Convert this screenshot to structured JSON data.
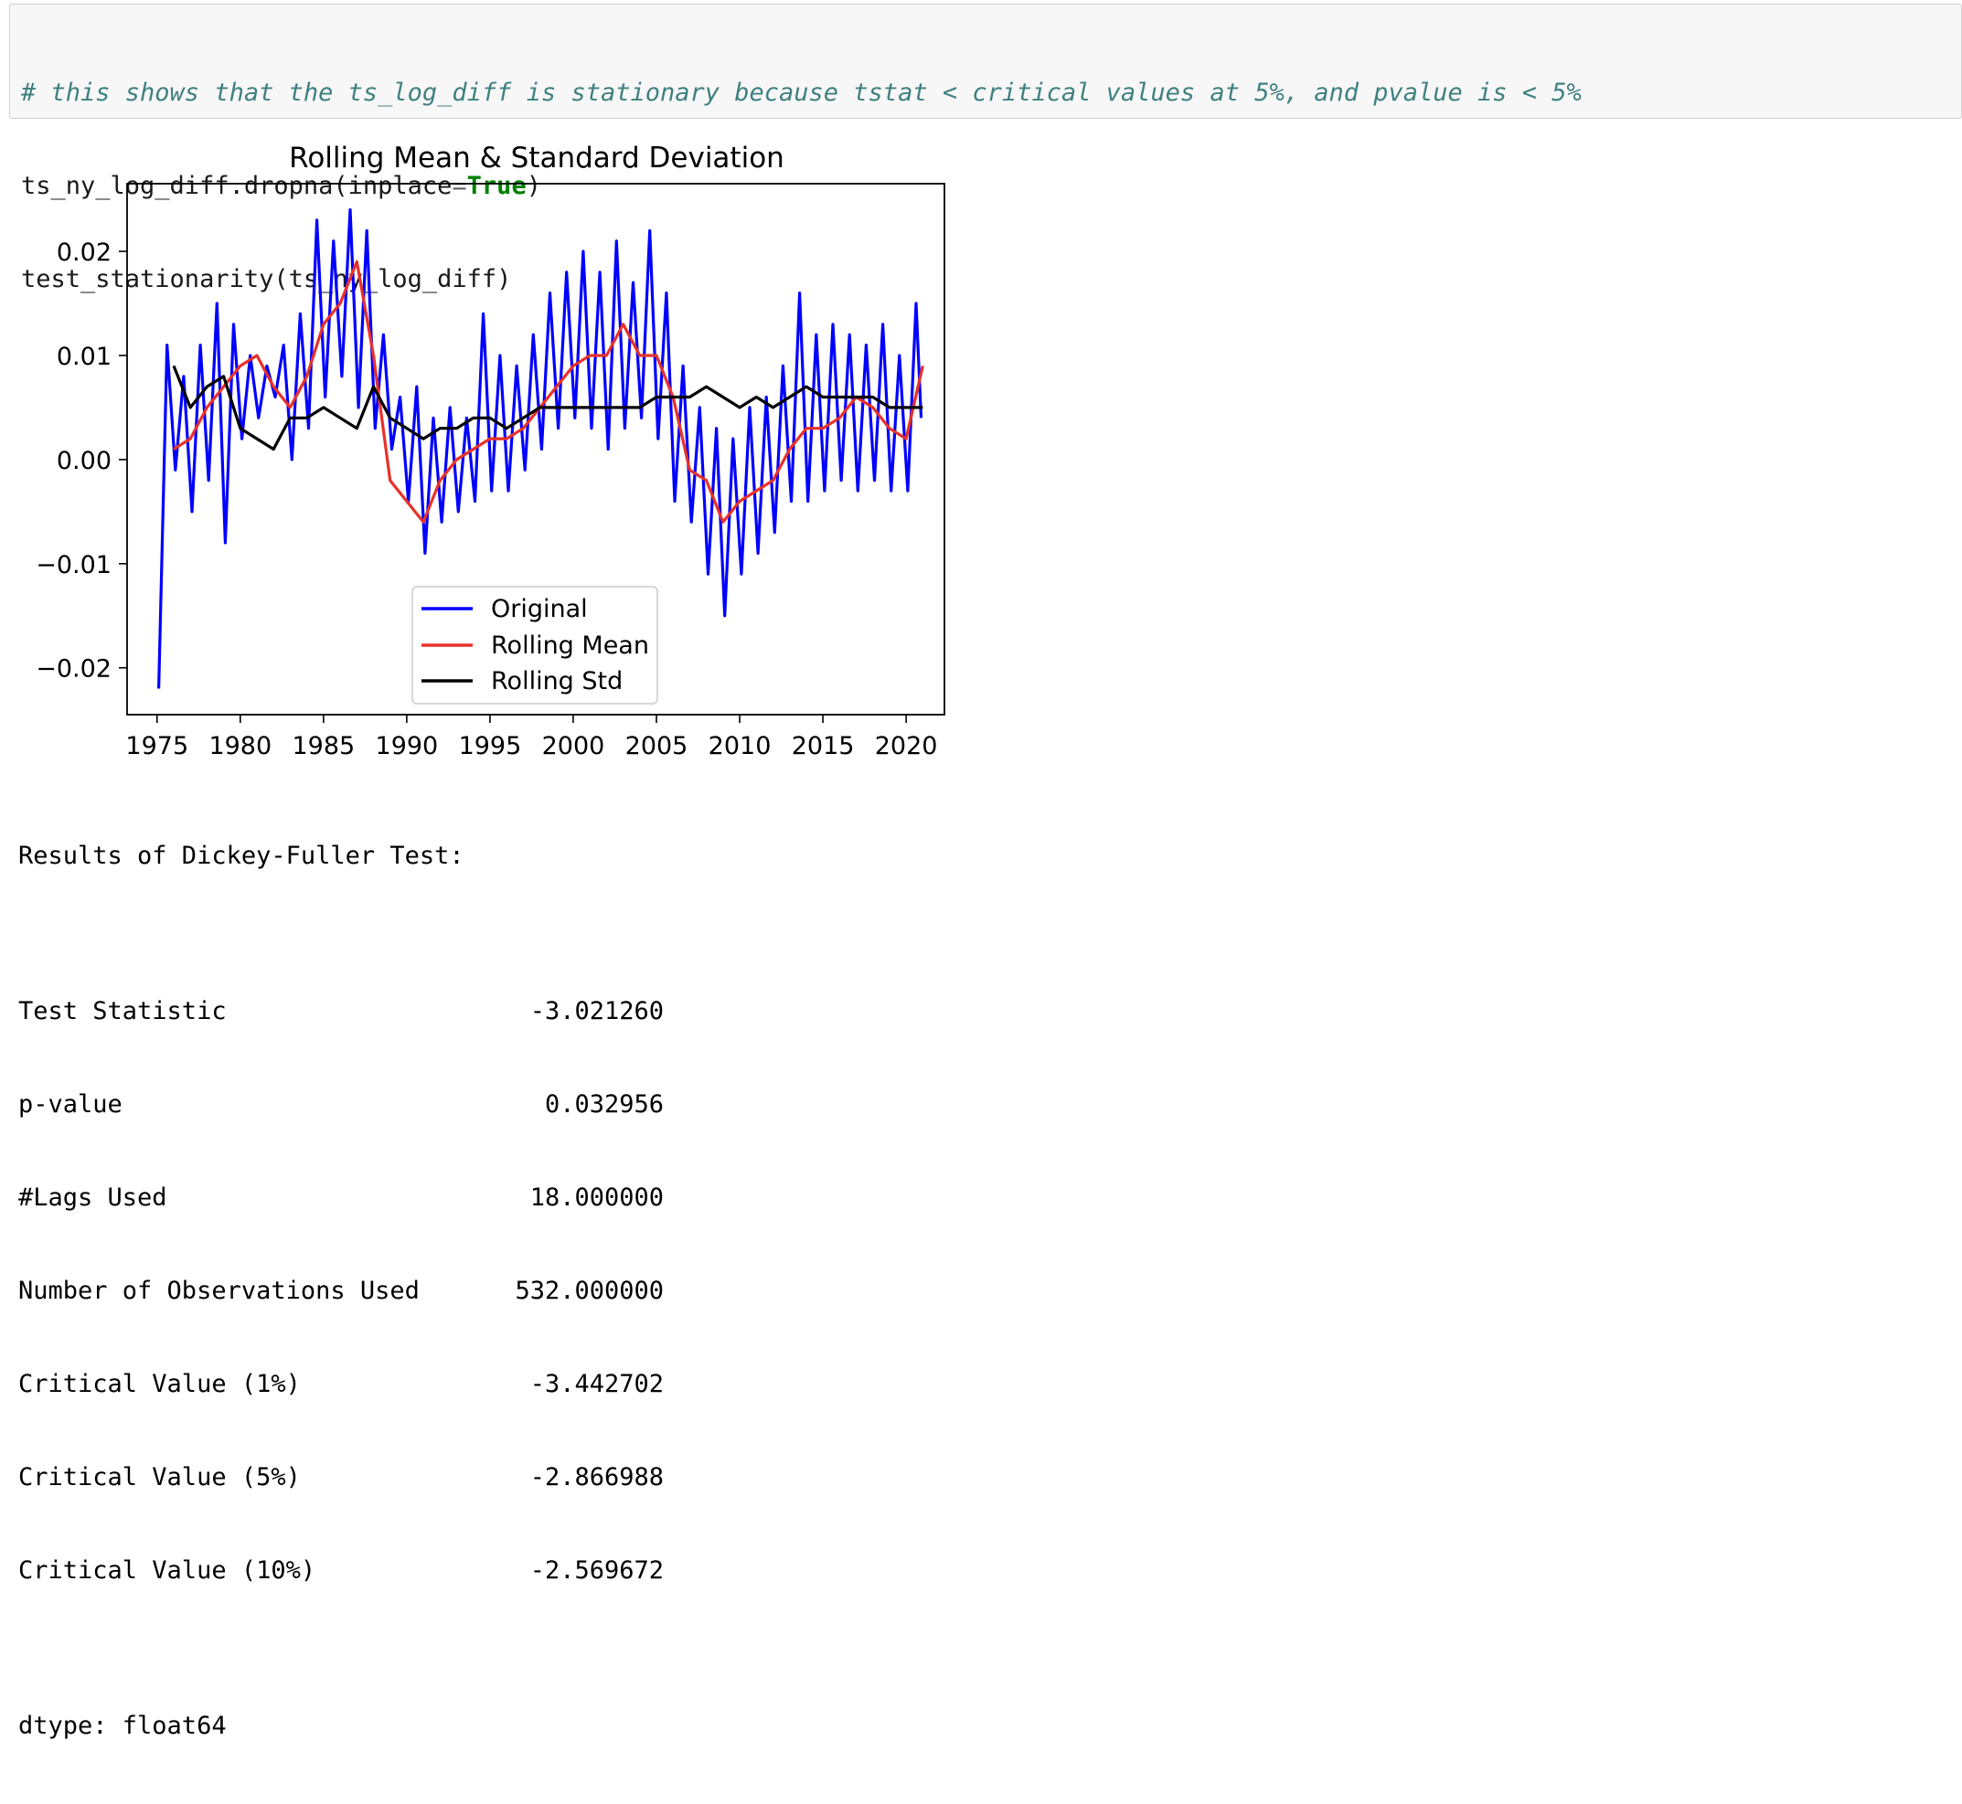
{
  "code_cell": {
    "comment": "# this shows that the ts_log_diff is stationary because tstat < critical values at 5%, and pvalue is < 5%",
    "line2_prefix": "ts_ny_log_diff.dropna(inplace",
    "line2_eq": "=",
    "line2_kw": "True",
    "line2_suffix": ")",
    "line3": "test_stationarity(ts_ny_log_diff)"
  },
  "chart_data": {
    "type": "line",
    "title": "Rolling Mean & Standard Deviation",
    "xlabel": "",
    "ylabel": "",
    "xlim": [
      1973.2,
      2022.3
    ],
    "ylim": [
      -0.0245,
      0.0265
    ],
    "xticks": [
      1975,
      1980,
      1985,
      1990,
      1995,
      2000,
      2005,
      2010,
      2015,
      2020
    ],
    "yticks": [
      -0.02,
      -0.01,
      0.0,
      0.01,
      0.02
    ],
    "xtick_labels": [
      "1975",
      "1980",
      "1985",
      "1990",
      "1995",
      "2000",
      "2005",
      "2010",
      "2015",
      "2020"
    ],
    "ytick_labels": [
      "−0.02",
      "−0.01",
      "0.00",
      "0.01",
      "0.02"
    ],
    "legend_position": "lower-center",
    "grid": false,
    "series": [
      {
        "name": "Original",
        "color": "#0000ff",
        "x": [
          1975.1,
          1975.6,
          1976.1,
          1976.6,
          1977.1,
          1977.6,
          1978.1,
          1978.6,
          1979.1,
          1979.6,
          1980.1,
          1980.6,
          1981.1,
          1981.6,
          1982.1,
          1982.6,
          1983.1,
          1983.6,
          1984.1,
          1984.6,
          1985.1,
          1985.6,
          1986.1,
          1986.6,
          1987.1,
          1987.6,
          1988.1,
          1988.6,
          1989.1,
          1989.6,
          1990.1,
          1990.6,
          1991.1,
          1991.6,
          1992.1,
          1992.6,
          1993.1,
          1993.6,
          1994.1,
          1994.6,
          1995.1,
          1995.6,
          1996.1,
          1996.6,
          1997.1,
          1997.6,
          1998.1,
          1998.6,
          1999.1,
          1999.6,
          2000.1,
          2000.6,
          2001.1,
          2001.6,
          2002.1,
          2002.6,
          2003.1,
          2003.6,
          2004.1,
          2004.6,
          2005.1,
          2005.6,
          2006.1,
          2006.6,
          2007.1,
          2007.6,
          2008.1,
          2008.6,
          2009.1,
          2009.6,
          2010.1,
          2010.6,
          2011.1,
          2011.6,
          2012.1,
          2012.6,
          2013.1,
          2013.6,
          2014.1,
          2014.6,
          2015.1,
          2015.6,
          2016.1,
          2016.6,
          2017.1,
          2017.6,
          2018.1,
          2018.6,
          2019.1,
          2019.6,
          2020.1,
          2020.6,
          2020.9
        ],
        "values": [
          -0.022,
          0.011,
          -0.001,
          0.008,
          -0.005,
          0.011,
          -0.002,
          0.015,
          -0.008,
          0.013,
          0.002,
          0.01,
          0.004,
          0.009,
          0.006,
          0.011,
          0.0,
          0.014,
          0.003,
          0.023,
          0.006,
          0.021,
          0.008,
          0.024,
          0.005,
          0.022,
          0.003,
          0.012,
          0.001,
          0.006,
          -0.004,
          0.007,
          -0.009,
          0.004,
          -0.006,
          0.005,
          -0.005,
          0.004,
          -0.004,
          0.014,
          -0.003,
          0.01,
          -0.003,
          0.009,
          -0.001,
          0.012,
          0.001,
          0.016,
          0.003,
          0.018,
          0.004,
          0.02,
          0.003,
          0.018,
          0.001,
          0.021,
          0.003,
          0.017,
          0.004,
          0.022,
          0.002,
          0.016,
          -0.004,
          0.009,
          -0.006,
          0.005,
          -0.011,
          0.003,
          -0.015,
          0.002,
          -0.011,
          0.005,
          -0.009,
          0.006,
          -0.007,
          0.009,
          -0.004,
          0.016,
          -0.004,
          0.012,
          -0.003,
          0.013,
          -0.002,
          0.012,
          -0.003,
          0.011,
          -0.002,
          0.013,
          -0.003,
          0.01,
          -0.003,
          0.015,
          0.004
        ]
      },
      {
        "name": "Rolling Mean",
        "color": "#e8312a",
        "x": [
          1976.0,
          1977.0,
          1978.0,
          1979.0,
          1980.0,
          1981.0,
          1982.0,
          1983.0,
          1984.0,
          1985.0,
          1986.0,
          1987.0,
          1988.0,
          1989.0,
          1990.0,
          1991.0,
          1992.0,
          1993.0,
          1994.0,
          1995.0,
          1996.0,
          1997.0,
          1998.0,
          1999.0,
          2000.0,
          2001.0,
          2002.0,
          2003.0,
          2004.0,
          2005.0,
          2006.0,
          2007.0,
          2008.0,
          2009.0,
          2010.0,
          2011.0,
          2012.0,
          2013.0,
          2014.0,
          2015.0,
          2016.0,
          2017.0,
          2018.0,
          2019.0,
          2020.0,
          2021.0
        ],
        "values": [
          0.001,
          0.002,
          0.005,
          0.007,
          0.009,
          0.01,
          0.007,
          0.005,
          0.008,
          0.013,
          0.015,
          0.019,
          0.01,
          -0.002,
          -0.004,
          -0.006,
          -0.002,
          0.0,
          0.001,
          0.002,
          0.002,
          0.003,
          0.005,
          0.007,
          0.009,
          0.01,
          0.01,
          0.013,
          0.01,
          0.01,
          0.006,
          -0.001,
          -0.002,
          -0.006,
          -0.004,
          -0.003,
          -0.002,
          0.001,
          0.003,
          0.003,
          0.004,
          0.006,
          0.005,
          0.003,
          0.002,
          0.009
        ]
      },
      {
        "name": "Rolling Std",
        "color": "#000000",
        "x": [
          1976.0,
          1977.0,
          1978.0,
          1979.0,
          1980.0,
          1981.0,
          1982.0,
          1983.0,
          1984.0,
          1985.0,
          1986.0,
          1987.0,
          1988.0,
          1989.0,
          1990.0,
          1991.0,
          1992.0,
          1993.0,
          1994.0,
          1995.0,
          1996.0,
          1997.0,
          1998.0,
          1999.0,
          2000.0,
          2001.0,
          2002.0,
          2003.0,
          2004.0,
          2005.0,
          2006.0,
          2007.0,
          2008.0,
          2009.0,
          2010.0,
          2011.0,
          2012.0,
          2013.0,
          2014.0,
          2015.0,
          2016.0,
          2017.0,
          2018.0,
          2019.0,
          2020.0,
          2021.0
        ],
        "values": [
          0.009,
          0.005,
          0.007,
          0.008,
          0.003,
          0.002,
          0.001,
          0.004,
          0.004,
          0.005,
          0.004,
          0.003,
          0.007,
          0.004,
          0.003,
          0.002,
          0.003,
          0.003,
          0.004,
          0.004,
          0.003,
          0.004,
          0.005,
          0.005,
          0.005,
          0.005,
          0.005,
          0.005,
          0.005,
          0.006,
          0.006,
          0.006,
          0.007,
          0.006,
          0.005,
          0.006,
          0.005,
          0.006,
          0.007,
          0.006,
          0.006,
          0.006,
          0.006,
          0.005,
          0.005,
          0.005
        ]
      }
    ]
  },
  "df_results": {
    "header": "Results of Dickey-Fuller Test:",
    "rows": [
      {
        "key": "Test Statistic",
        "value": "-3.021260"
      },
      {
        "key": "p-value",
        "value": "0.032956"
      },
      {
        "key": "#Lags Used",
        "value": "18.000000"
      },
      {
        "key": "Number of Observations Used",
        "value": "532.000000"
      },
      {
        "key": "Critical Value (1%)",
        "value": "-3.442702"
      },
      {
        "key": "Critical Value (5%)",
        "value": "-2.866988"
      },
      {
        "key": "Critical Value (10%)",
        "value": "-2.569672"
      }
    ],
    "footer": "dtype: float64"
  }
}
